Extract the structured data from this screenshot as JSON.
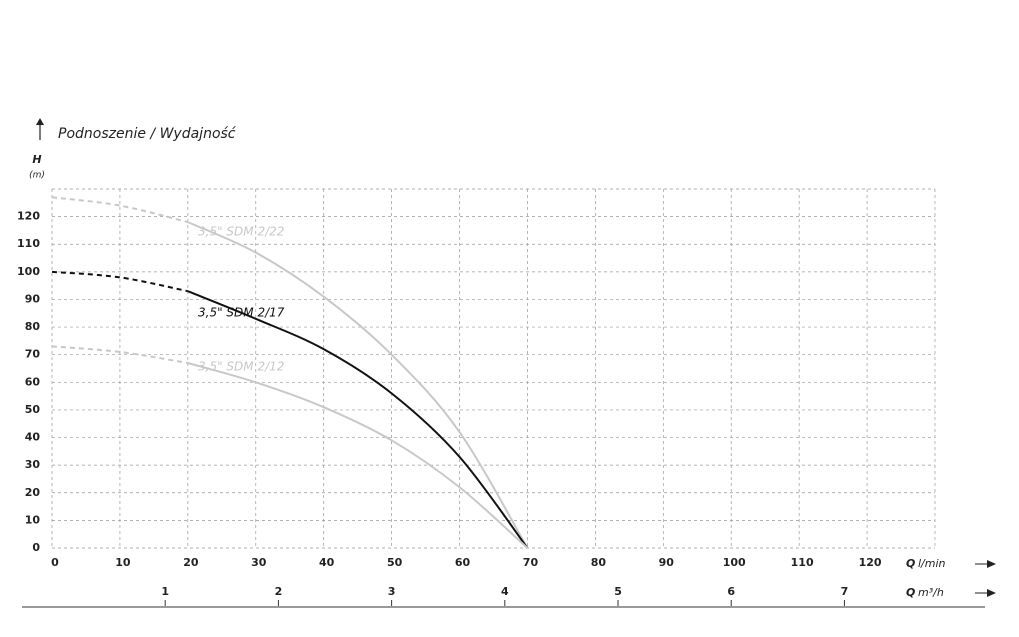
{
  "chart_data": {
    "type": "line",
    "title": "Podnoszenie / Wydajność",
    "y_label": {
      "symbol": "H",
      "unit": "(m)"
    },
    "x_label": {
      "symbol": "Q",
      "unit": "l/min"
    },
    "x2_label": {
      "symbol": "Q",
      "unit": "m³/h"
    },
    "x": [
      0,
      10,
      20,
      30,
      40,
      50,
      60,
      70
    ],
    "series": [
      {
        "name": "3,5\" SDM 2/22",
        "color": "#c8c8c8",
        "values": [
          127,
          124,
          118,
          107,
          91,
          70,
          42,
          0
        ]
      },
      {
        "name": "3,5\" SDM 2/17",
        "color": "#111111",
        "values": [
          100,
          98,
          93,
          83,
          72,
          56,
          33,
          0
        ]
      },
      {
        "name": "3,5\" SDM 2/12",
        "color": "#c8c8c8",
        "values": [
          73,
          71,
          67,
          60,
          51,
          39,
          22,
          0
        ]
      }
    ],
    "xlim": [
      0,
      130
    ],
    "xticks": [
      0,
      10,
      20,
      30,
      40,
      50,
      60,
      70,
      80,
      90,
      100,
      110,
      120
    ],
    "ylim": [
      0,
      130
    ],
    "yticks": [
      0,
      10,
      20,
      30,
      40,
      50,
      60,
      70,
      80,
      90,
      100,
      110,
      120
    ],
    "x2lim": [
      0,
      7.8
    ],
    "x2ticks": [
      1,
      2,
      3,
      4,
      5,
      6,
      7
    ],
    "grid": true
  }
}
